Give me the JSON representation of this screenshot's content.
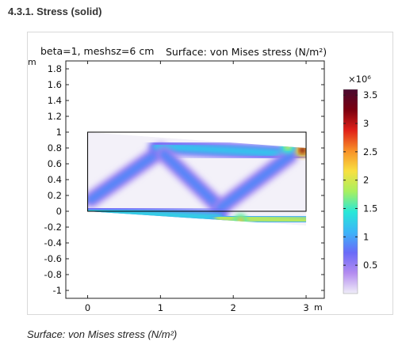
{
  "section": {
    "title": "4.3.1. Stress (solid)"
  },
  "caption": "Surface: von Mises stress (N/m²)",
  "chart_data": {
    "type": "heatmap",
    "title_left": "beta=1, meshsz=6 cm",
    "title_right": "Surface: von Mises stress (N/m²)",
    "xlabel": "m",
    "ylabel": "m",
    "xlim": [
      -0.3,
      3.25
    ],
    "ylim": [
      -1.1,
      1.9
    ],
    "x_ticks": [
      0,
      1,
      2,
      3
    ],
    "x_tick_labels": [
      "0",
      "1",
      "2",
      "3"
    ],
    "y_ticks": [
      1.8,
      1.6,
      1.4,
      1.2,
      1,
      0.8,
      0.6,
      0.4,
      0.2,
      0,
      -0.2,
      -0.4,
      -0.6,
      -0.8,
      -1
    ],
    "y_tick_labels": [
      "1.8",
      "1.6",
      "1.4",
      "1.2",
      "1",
      "0.8",
      "0.6",
      "0.4",
      "0.2",
      "0",
      "-0.2",
      "-0.4",
      "-0.6",
      "-0.8",
      "-1"
    ],
    "undeformed_rect": {
      "x0": 0,
      "x1": 3,
      "y0": 0,
      "y1": 1
    },
    "deformed_shape": [
      [
        0,
        1
      ],
      [
        3,
        0.8
      ],
      [
        3,
        -0.18
      ],
      [
        0,
        0
      ]
    ],
    "members": [
      {
        "name": "left-diagonal",
        "from": [
          0.05,
          0.15
        ],
        "to": [
          1.0,
          0.76
        ],
        "stress": 0.85
      },
      {
        "name": "top-chord",
        "from": [
          0.95,
          0.82
        ],
        "to": [
          2.92,
          0.72
        ],
        "stress": 1.2
      },
      {
        "name": "center-diagonal-down",
        "from": [
          1.05,
          0.72
        ],
        "to": [
          1.82,
          0.04
        ],
        "stress": 0.85
      },
      {
        "name": "center-diagonal-up",
        "from": [
          1.82,
          0.04
        ],
        "to": [
          2.78,
          0.7
        ],
        "stress": 0.85
      },
      {
        "name": "bottom-chord-left",
        "from": [
          0.0,
          0.0
        ],
        "to": [
          1.8,
          -0.08
        ],
        "stress": 1.3
      },
      {
        "name": "bottom-chord-right",
        "from": [
          1.8,
          -0.08
        ],
        "to": [
          3.0,
          -0.12
        ],
        "stress": 1.9
      }
    ],
    "hotspots": [
      {
        "at": [
          2.95,
          0.77
        ],
        "stress": 3.3
      },
      {
        "at": [
          2.75,
          0.82
        ],
        "stress": 2.1
      },
      {
        "at": [
          2.1,
          -0.12
        ],
        "stress": 2.3
      }
    ],
    "colorbar": {
      "label": "×10⁶",
      "min": 0,
      "max": 3.6,
      "ticks": [
        3.5,
        3,
        2.5,
        2,
        1.5,
        1,
        0.5
      ],
      "tick_labels": [
        "3.5",
        "3",
        "2.5",
        "2",
        "1.5",
        "1",
        "0.5"
      ],
      "stops": [
        "#f0eef8",
        "#b48cf0",
        "#6a6af8",
        "#3cb4f8",
        "#28e8d8",
        "#a8f060",
        "#f8e040",
        "#f89028",
        "#e02018",
        "#7a0010",
        "#4a0a30"
      ]
    }
  }
}
